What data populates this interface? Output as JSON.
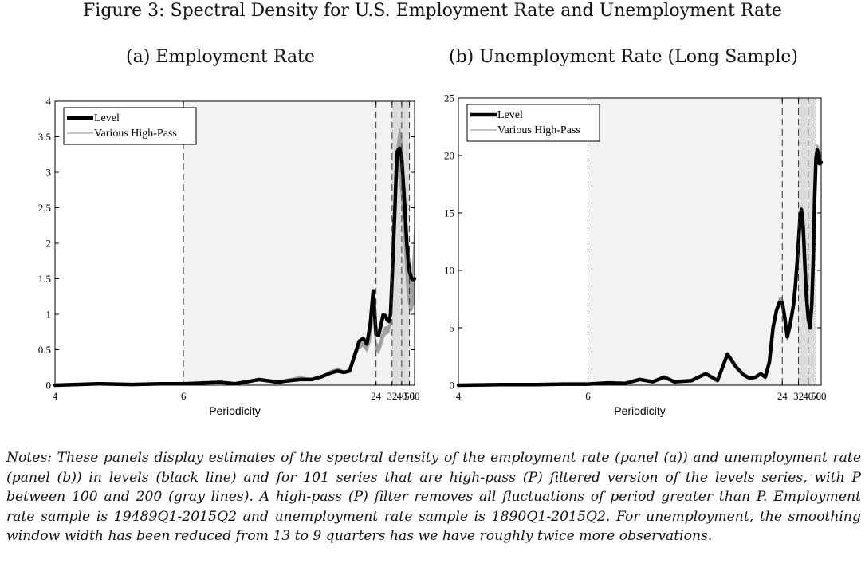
{
  "figure_title": "Figure 3: Spectral Density for U.S. Employment Rate and Unemployment Rate",
  "notes": "Notes: These panels display estimates of the spectral density of the employment rate (panel (a)) and unemployment rate (panel (b)) in levels (black line) and for 101 series that are high-pass (P) filtered version of the levels series, with P between 100 and 200 (gray lines). A high-pass (P) filter removes all fluctuations of period greater than P. Employment rate sample is 19489Q1-2015Q2 and unemployment rate sample is 1890Q1-2015Q2. For unemployment, the smoothing window width has been reduced from 13 to 9 quarters has we have roughly twice more observations.",
  "colors": {
    "level": "#000000",
    "highpass": "#a0a0a0",
    "light_region": "#f2f2f2",
    "dark_region": "#dcdcdc"
  },
  "chart_data": [
    {
      "type": "line",
      "title": "(a) Employment Rate",
      "xlabel": "Periodicity",
      "ylabel": "",
      "xscale": "reciprocal",
      "xticks": [
        4,
        6,
        24,
        32,
        40,
        50,
        60
      ],
      "xlim": [
        4,
        60
      ],
      "yticks": [
        "0",
        "0.5",
        "1",
        "1.5",
        "2",
        "2.5",
        "3",
        "3.5",
        "4"
      ],
      "ylim": [
        0,
        4
      ],
      "legend_placement": "top-left",
      "shaded_regions": [
        {
          "from": 6,
          "to": 32,
          "shade": "light"
        },
        {
          "from": 32,
          "to": 50,
          "shade": "dark"
        }
      ],
      "dashed_lines": [
        6,
        24,
        32,
        40,
        50
      ],
      "series": [
        {
          "name": "Level",
          "x": [
            4.0,
            4.5,
            5.0,
            5.5,
            6.0,
            6.5,
            7.0,
            7.5,
            8.0,
            8.5,
            9.0,
            9.5,
            10.0,
            11.0,
            12.0,
            13.0,
            14.0,
            15.0,
            16.0,
            17.0,
            18.0,
            19.0,
            20.0,
            21.0,
            22.0,
            23.0,
            24.0,
            25.0,
            26.0,
            27.0,
            28.0,
            29.0,
            30.0,
            31.0,
            32.0,
            33.0,
            34.0,
            35.0,
            36.0,
            38.0,
            40.0,
            42.0,
            44.0,
            46.0,
            48.0,
            50.0,
            52.0,
            54.0,
            56.0,
            58.0,
            60.0
          ],
          "y": [
            0.0,
            0.02,
            0.01,
            0.02,
            0.02,
            0.03,
            0.04,
            0.02,
            0.05,
            0.08,
            0.06,
            0.04,
            0.06,
            0.08,
            0.08,
            0.12,
            0.17,
            0.2,
            0.18,
            0.2,
            0.42,
            0.62,
            0.66,
            0.58,
            0.86,
            1.33,
            0.72,
            0.7,
            0.85,
            0.99,
            0.98,
            0.92,
            0.9,
            1.0,
            1.5,
            2.0,
            2.5,
            3.0,
            3.3,
            3.34,
            3.2,
            2.8,
            2.4,
            2.0,
            1.78,
            1.6,
            1.55,
            1.5,
            1.49,
            1.49,
            1.5
          ]
        },
        {
          "name": "Various High-Pass",
          "x": [
            4.0,
            4.5,
            5.0,
            5.5,
            6.0,
            6.5,
            7.0,
            7.5,
            8.0,
            8.5,
            9.0,
            9.5,
            10.0,
            11.0,
            12.0,
            13.0,
            14.0,
            15.0,
            16.0,
            17.0,
            18.0,
            19.0,
            20.0,
            21.0,
            22.0,
            23.0,
            24.0,
            25.0,
            26.0,
            27.0,
            28.0,
            29.0,
            30.0,
            31.0,
            32.0,
            33.0,
            34.0,
            35.0,
            36.0,
            38.0,
            40.0,
            42.0,
            44.0,
            46.0,
            48.0,
            50.0,
            52.0,
            54.0,
            56.0,
            58.0,
            60.0
          ],
          "y_low": [
            0.0,
            0.02,
            0.01,
            0.02,
            0.02,
            0.03,
            0.04,
            0.02,
            0.05,
            0.06,
            0.07,
            0.05,
            0.07,
            0.1,
            0.08,
            0.1,
            0.18,
            0.18,
            0.18,
            0.18,
            0.38,
            0.52,
            0.55,
            0.48,
            0.62,
            0.96,
            0.5,
            0.45,
            0.55,
            0.65,
            0.72,
            0.72,
            0.75,
            0.85,
            1.35,
            1.8,
            2.3,
            2.7,
            2.95,
            2.9,
            2.6,
            2.2,
            1.75,
            1.4,
            1.2,
            1.1,
            1.05,
            1.05,
            1.1,
            1.15,
            1.2
          ],
          "y_high": [
            0.0,
            0.02,
            0.01,
            0.02,
            0.02,
            0.03,
            0.04,
            0.02,
            0.05,
            0.08,
            0.08,
            0.06,
            0.08,
            0.12,
            0.09,
            0.12,
            0.2,
            0.24,
            0.2,
            0.22,
            0.42,
            0.6,
            0.6,
            0.55,
            0.72,
            1.08,
            0.6,
            0.56,
            0.67,
            0.78,
            0.82,
            0.82,
            0.85,
            0.95,
            1.45,
            1.95,
            2.5,
            3.05,
            3.4,
            3.62,
            3.45,
            3.0,
            2.5,
            2.1,
            1.85,
            1.65,
            1.55,
            1.55,
            1.7,
            1.95,
            2.2
          ]
        }
      ]
    },
    {
      "type": "line",
      "title": "(b) Unemployment Rate (Long Sample)",
      "xlabel": "Periodicity",
      "ylabel": "",
      "xscale": "reciprocal",
      "xticks": [
        4,
        6,
        24,
        32,
        40,
        50,
        60
      ],
      "xlim": [
        4,
        60
      ],
      "yticks": [
        "0",
        "5",
        "10",
        "15",
        "20",
        "25"
      ],
      "ylim": [
        0,
        25
      ],
      "legend_placement": "top-left",
      "shaded_regions": [
        {
          "from": 6,
          "to": 32,
          "shade": "light"
        },
        {
          "from": 32,
          "to": 50,
          "shade": "dark"
        }
      ],
      "dashed_lines": [
        6,
        24,
        32,
        40,
        50
      ],
      "series": [
        {
          "name": "Level",
          "x": [
            4.0,
            4.5,
            5.0,
            5.5,
            6.0,
            6.5,
            7.0,
            7.5,
            8.0,
            8.5,
            9.0,
            9.5,
            10.0,
            11.0,
            12.0,
            13.0,
            14.0,
            15.0,
            16.0,
            17.0,
            18.0,
            19.0,
            20.0,
            21.0,
            22.0,
            23.0,
            24.0,
            25.0,
            26.0,
            27.0,
            28.0,
            29.0,
            30.0,
            31.0,
            32.0,
            33.0,
            34.0,
            35.0,
            36.0,
            38.0,
            40.0,
            42.0,
            44.0,
            46.0,
            48.0,
            50.0,
            52.0,
            54.0,
            56.0,
            58.0,
            60.0
          ],
          "y": [
            0.0,
            0.05,
            0.05,
            0.1,
            0.1,
            0.2,
            0.15,
            0.5,
            0.3,
            0.7,
            0.3,
            0.35,
            0.4,
            1.0,
            0.4,
            2.7,
            1.6,
            0.9,
            0.6,
            0.7,
            1.0,
            0.7,
            2.0,
            5.0,
            6.5,
            7.2,
            7.2,
            5.8,
            4.2,
            5.0,
            6.0,
            7.0,
            8.5,
            10.5,
            12.5,
            14.5,
            15.3,
            14.5,
            12.5,
            8.0,
            5.8,
            5.0,
            7.0,
            11.0,
            16.5,
            19.8,
            20.5,
            20.2,
            19.3,
            19.3,
            19.4
          ]
        },
        {
          "name": "Various High-Pass",
          "x": [
            4.0,
            4.5,
            5.0,
            5.5,
            6.0,
            6.5,
            7.0,
            7.5,
            8.0,
            8.5,
            9.0,
            9.5,
            10.0,
            11.0,
            12.0,
            13.0,
            14.0,
            15.0,
            16.0,
            17.0,
            18.0,
            19.0,
            20.0,
            21.0,
            22.0,
            23.0,
            24.0,
            25.0,
            26.0,
            27.0,
            28.0,
            29.0,
            30.0,
            31.0,
            32.0,
            33.0,
            34.0,
            35.0,
            36.0,
            38.0,
            40.0,
            42.0,
            44.0,
            46.0,
            48.0,
            50.0,
            52.0,
            54.0,
            56.0,
            58.0,
            60.0
          ],
          "y_low": [
            0.0,
            0.05,
            0.05,
            0.1,
            0.1,
            0.2,
            0.15,
            0.5,
            0.3,
            0.7,
            0.3,
            0.35,
            0.4,
            1.0,
            0.4,
            2.6,
            1.5,
            0.9,
            0.6,
            0.7,
            0.9,
            0.6,
            1.8,
            4.7,
            6.2,
            6.9,
            6.9,
            5.5,
            3.9,
            4.8,
            5.8,
            6.8,
            8.3,
            10.3,
            12.3,
            14.3,
            15.1,
            14.3,
            12.3,
            7.8,
            5.6,
            4.8,
            6.8,
            10.8,
            16.2,
            19.5,
            20.2,
            20.0,
            19.2,
            19.2,
            19.2
          ],
          "y_high": [
            0.0,
            0.05,
            0.05,
            0.1,
            0.1,
            0.2,
            0.15,
            0.5,
            0.3,
            0.7,
            0.3,
            0.35,
            0.4,
            1.0,
            0.4,
            2.8,
            1.7,
            0.95,
            0.65,
            0.75,
            1.1,
            0.8,
            2.1,
            5.2,
            6.8,
            7.6,
            7.6,
            6.1,
            4.4,
            5.2,
            6.2,
            7.2,
            8.7,
            10.7,
            12.7,
            14.7,
            15.6,
            14.8,
            12.8,
            8.2,
            6.0,
            5.2,
            7.2,
            11.2,
            16.8,
            20.1,
            20.9,
            20.8,
            20.2,
            20.2,
            20.2
          ]
        }
      ]
    }
  ]
}
